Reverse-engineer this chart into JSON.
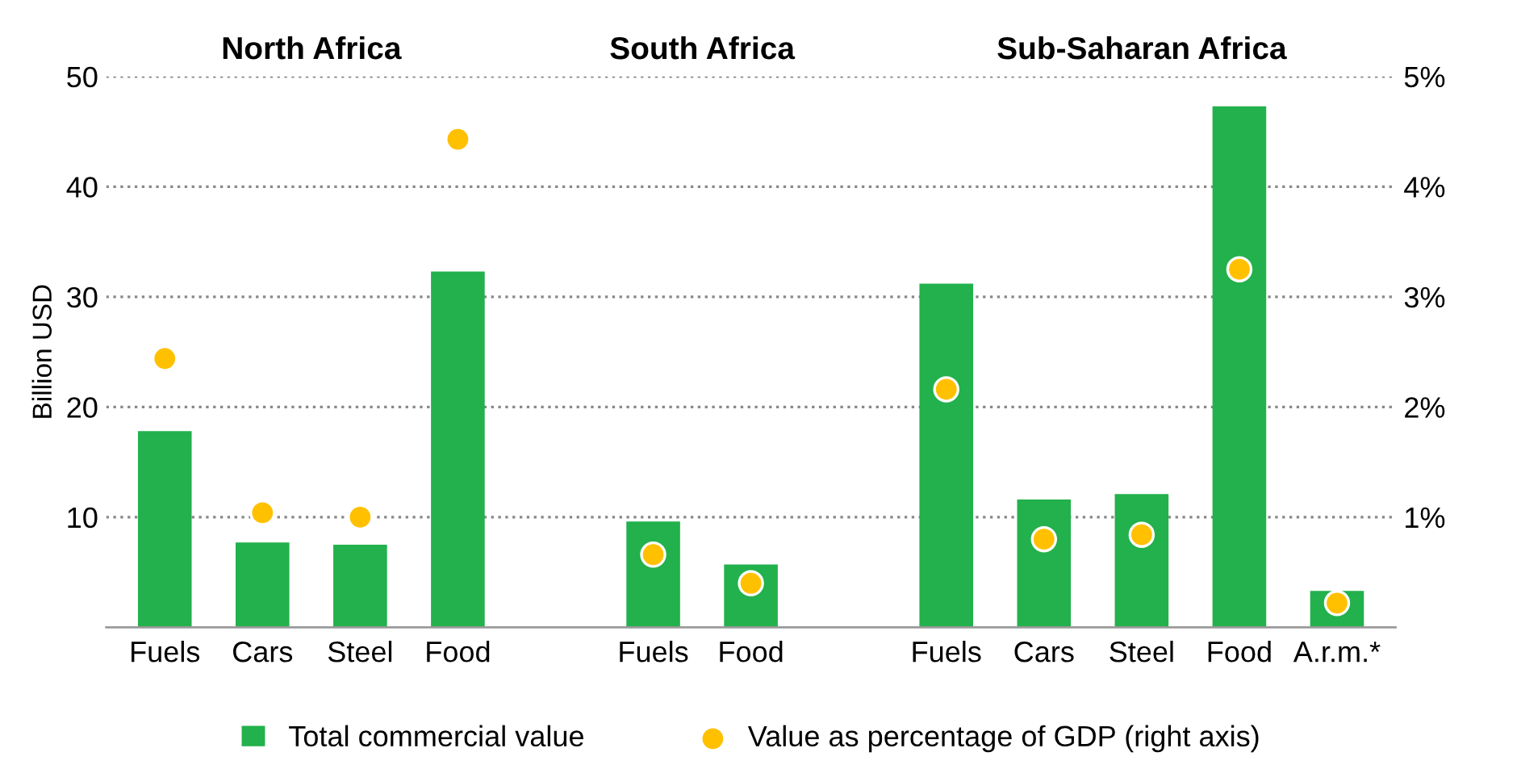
{
  "chart_data": {
    "type": "bar",
    "categories": [
      "Fuels",
      "Cars",
      "Steel",
      "Food",
      null,
      "Fuels",
      "Food",
      null,
      "Fuels",
      "Cars",
      "Steel",
      "Food",
      "A.r.m.*"
    ],
    "series": [
      {
        "name": "Total commercial value",
        "color": "#22b14c",
        "values": [
          17.8,
          7.7,
          7.5,
          32.3,
          null,
          9.6,
          5.7,
          null,
          31.2,
          11.6,
          12.1,
          47.3,
          3.3
        ]
      },
      {
        "name": "Value as percentage of GDP (right axis)",
        "type": "scatter",
        "axis": "y2",
        "color": "#ffc000",
        "marker": "circle",
        "values": [
          2.44,
          1.04,
          1.0,
          4.43,
          null,
          0.66,
          0.4,
          null,
          2.16,
          0.8,
          0.84,
          3.25,
          0.22
        ]
      }
    ],
    "annotations": [
      "North Africa",
      "South Africa",
      "Sub-Saharan Africa"
    ],
    "ylabel": "Billion USD",
    "ylim": [
      0,
      50
    ],
    "yticks": [
      10,
      20,
      30,
      40,
      50
    ],
    "y2lim": [
      0,
      5
    ],
    "y2ticks": [
      {
        "value": 1,
        "label": "1%"
      },
      {
        "value": 2,
        "label": "2%"
      },
      {
        "value": 3,
        "label": "3%"
      },
      {
        "value": 4,
        "label": "4%"
      },
      {
        "value": 5,
        "label": "5%"
      }
    ],
    "grid": "y",
    "legend": "bottom"
  }
}
